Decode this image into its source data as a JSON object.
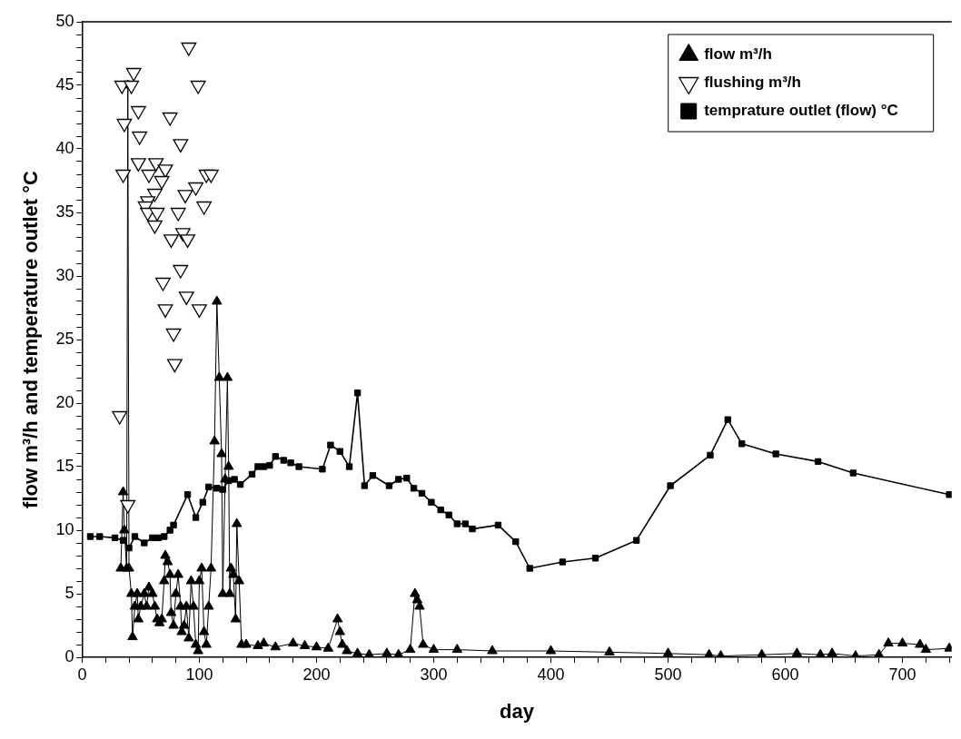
{
  "chart_data": {
    "type": "scatter",
    "xlabel": "day",
    "ylabel": "flow m³/h and temperature outlet °C",
    "xlim": [
      0,
      742
    ],
    "ylim": [
      0,
      50
    ],
    "xticks": [
      0,
      {
        "value": 20,
        "label": null
      },
      {
        "value": 40,
        "label": null
      },
      {
        "value": 60,
        "label": null
      },
      {
        "value": 80,
        "label": null
      },
      100,
      {
        "value": 120,
        "label": null
      },
      {
        "value": 140,
        "label": null
      },
      {
        "value": 160,
        "label": null
      },
      {
        "value": 180,
        "label": null
      },
      200,
      {
        "value": 220,
        "label": null
      },
      {
        "value": 240,
        "label": null
      },
      {
        "value": 260,
        "label": null
      },
      {
        "value": 280,
        "label": null
      },
      300,
      {
        "value": 320,
        "label": null
      },
      {
        "value": 340,
        "label": null
      },
      {
        "value": 360,
        "label": null
      },
      {
        "value": 380,
        "label": null
      },
      400,
      {
        "value": 420,
        "label": null
      },
      {
        "value": 440,
        "label": null
      },
      {
        "value": 460,
        "label": null
      },
      {
        "value": 480,
        "label": null
      },
      500,
      {
        "value": 520,
        "label": null
      },
      {
        "value": 540,
        "label": null
      },
      {
        "value": 560,
        "label": null
      },
      {
        "value": 580,
        "label": null
      },
      600,
      {
        "value": 620,
        "label": null
      },
      {
        "value": 640,
        "label": null
      },
      {
        "value": 660,
        "label": null
      },
      {
        "value": 680,
        "label": null
      },
      700,
      {
        "value": 720,
        "label": null
      },
      {
        "value": 740,
        "label": null
      }
    ],
    "yticks": [
      0,
      {
        "value": 1,
        "label": null
      },
      {
        "value": 2,
        "label": null
      },
      {
        "value": 3,
        "label": null
      },
      {
        "value": 4,
        "label": null
      },
      5,
      {
        "value": 6,
        "label": null
      },
      {
        "value": 7,
        "label": null
      },
      {
        "value": 8,
        "label": null
      },
      {
        "value": 9,
        "label": null
      },
      10,
      {
        "value": 11,
        "label": null
      },
      {
        "value": 12,
        "label": null
      },
      {
        "value": 13,
        "label": null
      },
      {
        "value": 14,
        "label": null
      },
      15,
      {
        "value": 16,
        "label": null
      },
      {
        "value": 17,
        "label": null
      },
      {
        "value": 18,
        "label": null
      },
      {
        "value": 19,
        "label": null
      },
      20,
      {
        "value": 21,
        "label": null
      },
      {
        "value": 22,
        "label": null
      },
      {
        "value": 23,
        "label": null
      },
      {
        "value": 24,
        "label": null
      },
      25,
      {
        "value": 26,
        "label": null
      },
      {
        "value": 27,
        "label": null
      },
      {
        "value": 28,
        "label": null
      },
      {
        "value": 29,
        "label": null
      },
      30,
      {
        "value": 31,
        "label": null
      },
      {
        "value": 32,
        "label": null
      },
      {
        "value": 33,
        "label": null
      },
      {
        "value": 34,
        "label": null
      },
      35,
      {
        "value": 36,
        "label": null
      },
      {
        "value": 37,
        "label": null
      },
      {
        "value": 38,
        "label": null
      },
      {
        "value": 39,
        "label": null
      },
      40,
      {
        "value": 41,
        "label": null
      },
      {
        "value": 42,
        "label": null
      },
      {
        "value": 43,
        "label": null
      },
      {
        "value": 44,
        "label": null
      },
      45,
      {
        "value": 46,
        "label": null
      },
      {
        "value": 47,
        "label": null
      },
      {
        "value": 48,
        "label": null
      },
      {
        "value": 49,
        "label": null
      },
      50
    ],
    "grid": false,
    "legend": "top right",
    "series": [
      {
        "name": "flow m³/h",
        "type": "line",
        "marker": "triangle",
        "color": "#000000",
        "x": [
          33,
          35,
          36,
          38,
          39,
          40,
          42,
          43,
          45,
          47,
          48,
          50,
          53,
          55,
          57,
          60,
          62,
          64,
          66,
          68,
          70,
          71,
          73,
          75,
          76,
          78,
          80,
          82,
          84,
          85,
          87,
          89,
          91,
          93,
          95,
          97,
          99,
          100,
          102,
          104,
          106,
          108,
          110,
          113,
          115,
          117,
          119,
          120,
          122,
          124,
          125,
          126,
          127,
          129,
          131,
          132,
          134,
          136,
          140,
          150,
          155,
          165,
          180,
          190,
          200,
          210,
          218,
          220,
          222,
          226,
          235,
          245,
          260,
          270,
          280,
          284,
          286,
          288,
          291,
          300,
          320,
          350,
          400,
          450,
          500,
          535,
          545,
          580,
          610,
          630,
          640,
          660,
          680,
          688,
          700,
          715,
          720,
          740
        ],
        "values": [
          7,
          13,
          10,
          7,
          45,
          7,
          5,
          1.6,
          4,
          5,
          3,
          4,
          5,
          4,
          5.5,
          5,
          4,
          3,
          2.7,
          3,
          6,
          8,
          7.5,
          6.5,
          3.5,
          2.5,
          5,
          6.5,
          4,
          2,
          2.5,
          4,
          1.5,
          6,
          4,
          1,
          0.5,
          6,
          7,
          2,
          1,
          4,
          7,
          17,
          28,
          22,
          16,
          5,
          14,
          22,
          15,
          5,
          7,
          6.5,
          3,
          10.5,
          6,
          1,
          1,
          0.9,
          1.1,
          0.8,
          1.1,
          0.9,
          0.8,
          0.7,
          3,
          2,
          1,
          0.5,
          0.3,
          0.2,
          0.3,
          0.2,
          0.6,
          5,
          4.5,
          4,
          1,
          0.6,
          0.6,
          0.5,
          0.5,
          0.4,
          0.3,
          0.2,
          0.1,
          0.2,
          0.3,
          0.2,
          0.3,
          0.1,
          0.2,
          1.1,
          1.1,
          1,
          0.6,
          0.7
        ]
      },
      {
        "name": "flushing m³/h",
        "type": "scatter",
        "marker": "triangle-down",
        "color": "#000000",
        "x": [
          32,
          39,
          91,
          44,
          34,
          42,
          99,
          48,
          75,
          36,
          49,
          84,
          48,
          63,
          71,
          35,
          57,
          68,
          106,
          110,
          97,
          88,
          62,
          56,
          54,
          104,
          56,
          64,
          82,
          62,
          76,
          86,
          90,
          84,
          69,
          89,
          71,
          100,
          78,
          79
        ],
        "values": [
          19,
          12,
          48,
          46,
          45,
          45,
          45,
          43,
          42.5,
          42,
          41,
          40.4,
          38.9,
          38.9,
          38.4,
          38,
          38,
          37.5,
          38,
          38,
          37,
          36.4,
          36.5,
          35.9,
          35.5,
          35.5,
          35,
          35,
          35,
          34,
          32.9,
          33.4,
          32.9,
          30.5,
          29.5,
          28.4,
          27.4,
          27.4,
          25.5,
          23.1
        ]
      },
      {
        "name": "temprature outlet (flow) °C",
        "type": "line",
        "marker": "square",
        "color": "#000000",
        "x": [
          7,
          15,
          28,
          35,
          40,
          45,
          53,
          60,
          65,
          70,
          75,
          78,
          90,
          97,
          103,
          108,
          115,
          120,
          125,
          130,
          135,
          145,
          150,
          155,
          160,
          165,
          172,
          178,
          185,
          205,
          212,
          220,
          228,
          235,
          241,
          248,
          262,
          270,
          277,
          283,
          290,
          298,
          306,
          313,
          320,
          327,
          333,
          355,
          370,
          382,
          410,
          438,
          473,
          502,
          536,
          551,
          563,
          592,
          628,
          658,
          740
        ],
        "values": [
          9.5,
          9.5,
          9.4,
          9.2,
          8.6,
          9.5,
          9.0,
          9.4,
          9.4,
          9.5,
          10.0,
          10.4,
          12.8,
          11.0,
          12.2,
          13.4,
          13.3,
          13.2,
          13.9,
          14.0,
          13.6,
          14.4,
          15.0,
          15.0,
          15.1,
          15.8,
          15.5,
          15.3,
          15.0,
          14.8,
          16.7,
          16.2,
          15.0,
          20.8,
          13.5,
          14.3,
          13.5,
          14.0,
          14.1,
          13.3,
          12.9,
          12.2,
          11.6,
          11.2,
          10.5,
          10.5,
          10.1,
          10.4,
          9.1,
          7.0,
          7.5,
          7.8,
          9.2,
          13.5,
          15.9,
          18.7,
          16.8,
          16.0,
          15.4,
          14.5,
          12.8
        ]
      }
    ]
  }
}
